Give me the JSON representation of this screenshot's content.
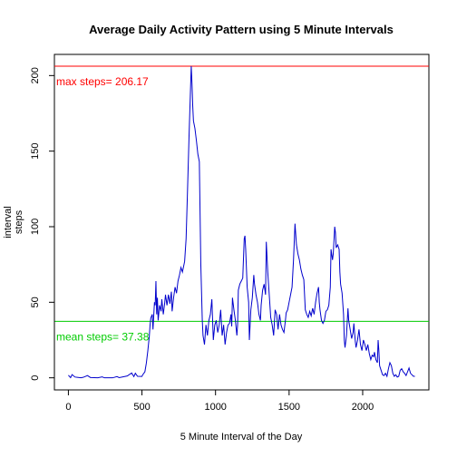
{
  "chart_data": {
    "type": "line",
    "title": "Average Daily Activity Pattern using 5 Minute Intervals",
    "xlabel": "5 Minute Interval of the Day",
    "ylabel_lines": [
      "interval",
      "steps"
    ],
    "xlim": [
      -95,
      2450
    ],
    "ylim": [
      -8,
      214
    ],
    "x_ticks": [
      0,
      500,
      1000,
      1500,
      2000
    ],
    "y_ticks": [
      0,
      50,
      100,
      150,
      200
    ],
    "grid": false,
    "line_color": "#0000CC",
    "points": [
      [
        0,
        1.7
      ],
      [
        15,
        0.1
      ],
      [
        25,
        2.1
      ],
      [
        45,
        0.5
      ],
      [
        60,
        0.3
      ],
      [
        85,
        0.0
      ],
      [
        100,
        0.3
      ],
      [
        130,
        1.5
      ],
      [
        150,
        0.2
      ],
      [
        200,
        0.0
      ],
      [
        230,
        0.6
      ],
      [
        245,
        0.0
      ],
      [
        300,
        0.0
      ],
      [
        330,
        0.8
      ],
      [
        345,
        0.1
      ],
      [
        400,
        1.2
      ],
      [
        430,
        3.2
      ],
      [
        445,
        0.8
      ],
      [
        455,
        3.0
      ],
      [
        470,
        1.0
      ],
      [
        500,
        0.9
      ],
      [
        505,
        2.0
      ],
      [
        520,
        4.0
      ],
      [
        530,
        9.8
      ],
      [
        540,
        18.0
      ],
      [
        550,
        27.5
      ],
      [
        555,
        34.8
      ],
      [
        560,
        39.5
      ],
      [
        570,
        42.0
      ],
      [
        575,
        32.0
      ],
      [
        585,
        50.0
      ],
      [
        590,
        48.0
      ],
      [
        595,
        64.0
      ],
      [
        600,
        42.0
      ],
      [
        605,
        53.0
      ],
      [
        610,
        38.0
      ],
      [
        620,
        48.0
      ],
      [
        630,
        44.0
      ],
      [
        635,
        52.0
      ],
      [
        645,
        42.0
      ],
      [
        655,
        50.0
      ],
      [
        660,
        55.0
      ],
      [
        670,
        48.0
      ],
      [
        680,
        55.0
      ],
      [
        690,
        49.0
      ],
      [
        700,
        57.0
      ],
      [
        705,
        44.0
      ],
      [
        715,
        53.0
      ],
      [
        725,
        60.0
      ],
      [
        735,
        56.0
      ],
      [
        745,
        64.0
      ],
      [
        755,
        68.0
      ],
      [
        765,
        73.0
      ],
      [
        775,
        70.0
      ],
      [
        790,
        77.0
      ],
      [
        800,
        92.0
      ],
      [
        810,
        125.0
      ],
      [
        820,
        160.0
      ],
      [
        830,
        191.0
      ],
      [
        835,
        206.2
      ],
      [
        840,
        195.0
      ],
      [
        845,
        180.0
      ],
      [
        850,
        170.0
      ],
      [
        860,
        165.0
      ],
      [
        870,
        157.0
      ],
      [
        880,
        148.0
      ],
      [
        890,
        143.0
      ],
      [
        900,
        75.0
      ],
      [
        910,
        38.0
      ],
      [
        915,
        28.0
      ],
      [
        925,
        22.0
      ],
      [
        935,
        35.0
      ],
      [
        945,
        28.0
      ],
      [
        955,
        38.0
      ],
      [
        965,
        42.0
      ],
      [
        975,
        52.0
      ],
      [
        985,
        25.0
      ],
      [
        995,
        35.0
      ],
      [
        1005,
        38.0
      ],
      [
        1015,
        30.0
      ],
      [
        1025,
        35.0
      ],
      [
        1035,
        45.0
      ],
      [
        1045,
        28.0
      ],
      [
        1055,
        35.0
      ],
      [
        1065,
        22.0
      ],
      [
        1075,
        30.0
      ],
      [
        1085,
        35.0
      ],
      [
        1095,
        36.0
      ],
      [
        1105,
        42.0
      ],
      [
        1110,
        34.0
      ],
      [
        1115,
        53.0
      ],
      [
        1125,
        45.0
      ],
      [
        1135,
        38.0
      ],
      [
        1145,
        28.0
      ],
      [
        1150,
        35.0
      ],
      [
        1155,
        58.0
      ],
      [
        1165,
        62.0
      ],
      [
        1175,
        64.0
      ],
      [
        1185,
        66.0
      ],
      [
        1195,
        92.0
      ],
      [
        1200,
        94.0
      ],
      [
        1205,
        85.0
      ],
      [
        1215,
        60.0
      ],
      [
        1225,
        50.0
      ],
      [
        1230,
        25.0
      ],
      [
        1240,
        45.0
      ],
      [
        1250,
        53.0
      ],
      [
        1260,
        68.0
      ],
      [
        1265,
        62.0
      ],
      [
        1275,
        55.0
      ],
      [
        1285,
        50.0
      ],
      [
        1295,
        42.0
      ],
      [
        1305,
        38.0
      ],
      [
        1310,
        48.0
      ],
      [
        1320,
        58.0
      ],
      [
        1330,
        62.0
      ],
      [
        1340,
        55.0
      ],
      [
        1345,
        90.0
      ],
      [
        1350,
        80.0
      ],
      [
        1355,
        70.0
      ],
      [
        1365,
        55.0
      ],
      [
        1375,
        40.0
      ],
      [
        1385,
        35.0
      ],
      [
        1395,
        28.0
      ],
      [
        1405,
        45.0
      ],
      [
        1415,
        42.0
      ],
      [
        1425,
        32.0
      ],
      [
        1435,
        42.0
      ],
      [
        1445,
        35.0
      ],
      [
        1455,
        32.0
      ],
      [
        1465,
        30.0
      ],
      [
        1475,
        38.0
      ],
      [
        1480,
        43.0
      ],
      [
        1490,
        45.0
      ],
      [
        1500,
        50.0
      ],
      [
        1510,
        55.0
      ],
      [
        1520,
        60.0
      ],
      [
        1530,
        78.0
      ],
      [
        1540,
        102.0
      ],
      [
        1545,
        95.0
      ],
      [
        1550,
        88.0
      ],
      [
        1560,
        82.0
      ],
      [
        1570,
        78.0
      ],
      [
        1580,
        72.0
      ],
      [
        1590,
        68.0
      ],
      [
        1600,
        65.0
      ],
      [
        1610,
        45.0
      ],
      [
        1620,
        42.0
      ],
      [
        1630,
        40.0
      ],
      [
        1640,
        44.0
      ],
      [
        1650,
        41.0
      ],
      [
        1660,
        46.0
      ],
      [
        1670,
        42.0
      ],
      [
        1680,
        50.0
      ],
      [
        1690,
        56.0
      ],
      [
        1700,
        60.0
      ],
      [
        1705,
        50.0
      ],
      [
        1710,
        45.0
      ],
      [
        1720,
        38.0
      ],
      [
        1730,
        36.0
      ],
      [
        1740,
        38.0
      ],
      [
        1750,
        44.0
      ],
      [
        1760,
        45.0
      ],
      [
        1770,
        48.0
      ],
      [
        1780,
        60.0
      ],
      [
        1785,
        85.0
      ],
      [
        1795,
        78.0
      ],
      [
        1800,
        82.0
      ],
      [
        1810,
        100.0
      ],
      [
        1815,
        96.0
      ],
      [
        1820,
        86.0
      ],
      [
        1830,
        88.0
      ],
      [
        1840,
        85.0
      ],
      [
        1845,
        70.0
      ],
      [
        1850,
        62.0
      ],
      [
        1860,
        56.0
      ],
      [
        1870,
        42.0
      ],
      [
        1875,
        25.0
      ],
      [
        1880,
        20.0
      ],
      [
        1890,
        28.0
      ],
      [
        1900,
        46.0
      ],
      [
        1905,
        38.0
      ],
      [
        1915,
        32.0
      ],
      [
        1925,
        26.0
      ],
      [
        1935,
        30.0
      ],
      [
        1940,
        36.0
      ],
      [
        1950,
        24.0
      ],
      [
        1955,
        20.0
      ],
      [
        1965,
        25.0
      ],
      [
        1975,
        32.0
      ],
      [
        1985,
        22.0
      ],
      [
        1995,
        18.0
      ],
      [
        2005,
        25.0
      ],
      [
        2015,
        22.0
      ],
      [
        2025,
        18.0
      ],
      [
        2035,
        22.0
      ],
      [
        2045,
        16.0
      ],
      [
        2055,
        12.0
      ],
      [
        2065,
        15.0
      ],
      [
        2075,
        14.0
      ],
      [
        2080,
        17.0
      ],
      [
        2090,
        12.0
      ],
      [
        2100,
        10.0
      ],
      [
        2105,
        25.0
      ],
      [
        2110,
        18.0
      ],
      [
        2115,
        8.0
      ],
      [
        2125,
        5.0
      ],
      [
        2135,
        2.0
      ],
      [
        2145,
        1.5
      ],
      [
        2155,
        3.0
      ],
      [
        2165,
        1.0
      ],
      [
        2175,
        6.0
      ],
      [
        2185,
        10.0
      ],
      [
        2195,
        8.0
      ],
      [
        2205,
        3.0
      ],
      [
        2215,
        1.0
      ],
      [
        2225,
        2.0
      ],
      [
        2235,
        0.5
      ],
      [
        2245,
        1.0
      ],
      [
        2255,
        5.0
      ],
      [
        2265,
        6.0
      ],
      [
        2275,
        4.0
      ],
      [
        2285,
        3.0
      ],
      [
        2295,
        1.5
      ],
      [
        2305,
        4.0
      ],
      [
        2315,
        6.5
      ],
      [
        2325,
        3.0
      ],
      [
        2335,
        2.0
      ],
      [
        2345,
        1.0
      ],
      [
        2355,
        1.0
      ]
    ],
    "reference_lines": [
      {
        "name": "max",
        "y": 206.17,
        "color": "#FF0000",
        "label": "max steps= 206.17"
      },
      {
        "name": "mean",
        "y": 37.38,
        "color": "#00CC00",
        "label": "mean steps= 37.38"
      }
    ]
  }
}
